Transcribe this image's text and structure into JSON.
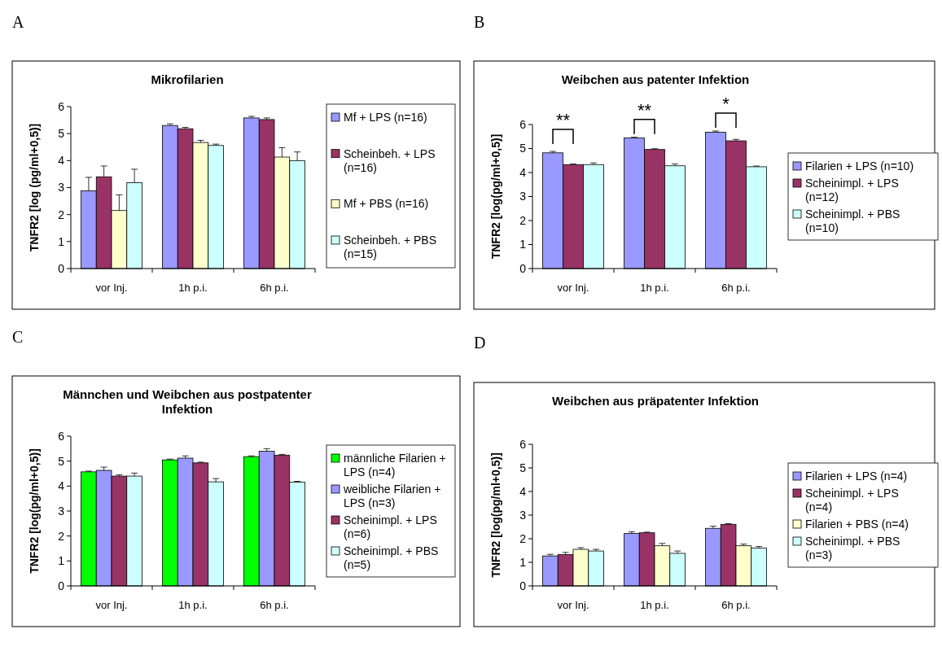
{
  "chart_data": [
    {
      "type": "bar",
      "title": "Mikrofilarien",
      "ylabel": "TNFR2 [log (pg/ml+0,5)]",
      "annotations": [
        "A"
      ],
      "categories": [
        "vor Inj.",
        "1h p.i.",
        "6h p.i."
      ],
      "ylim": [
        0,
        6
      ],
      "yticks": [
        0,
        1,
        2,
        3,
        4,
        5,
        6
      ],
      "legend": "right",
      "series": [
        {
          "name": "Mf + LPS (n=16)",
          "color": "#9999ff",
          "values": [
            2.88,
            5.3,
            5.58
          ],
          "errors": [
            [
              2.88,
              3.38
            ],
            [
              5.3,
              5.36
            ],
            [
              5.58,
              5.64
            ]
          ]
        },
        {
          "name": "Scheinbeh. + LPS (n=16)",
          "color": "#993366",
          "values": [
            3.4,
            5.18,
            5.52
          ],
          "errors": [
            [
              3.4,
              3.8
            ],
            [
              5.18,
              5.23
            ],
            [
              5.52,
              5.58
            ]
          ]
        },
        {
          "name": "Mf + PBS (n=16)",
          "color": "#ffffcc",
          "values": [
            2.15,
            4.67,
            4.13
          ],
          "errors": [
            [
              2.15,
              2.73
            ],
            [
              4.67,
              4.75
            ],
            [
              4.13,
              4.48
            ]
          ]
        },
        {
          "name": "Scheinbeh. + PBS (n=15)",
          "color": "#ccffff",
          "values": [
            3.18,
            4.56,
            4.0
          ],
          "errors": [
            [
              3.18,
              3.68
            ],
            [
              4.56,
              4.61
            ],
            [
              4.0,
              4.32
            ]
          ]
        }
      ]
    },
    {
      "type": "bar",
      "title": "Weibchen aus patenter Infektion",
      "ylabel": "TNFR2 [log(pg/ml+0,5)]",
      "annotations": [
        "B",
        {
          "text": "**",
          "x": "vor Inj."
        },
        {
          "text": "**",
          "x": "1h p.i."
        },
        {
          "text": "*",
          "x": "6h p.i."
        }
      ],
      "categories": [
        "vor Inj.",
        "1h p.i.",
        "6h p.i."
      ],
      "ylim": [
        0,
        6
      ],
      "yticks": [
        0,
        1,
        2,
        3,
        4,
        5,
        6
      ],
      "legend": "right",
      "series": [
        {
          "name": "Filarien + LPS (n=10)",
          "color": "#9999ff",
          "values": [
            4.82,
            5.44,
            5.68
          ],
          "errors": [
            [
              4.82,
              4.88
            ],
            [
              5.44,
              5.47
            ],
            [
              5.68,
              5.73
            ]
          ]
        },
        {
          "name": "Scheinimpl. + LPS (n=12)",
          "color": "#993366",
          "values": [
            4.33,
            4.96,
            5.32
          ],
          "errors": [
            [
              4.33,
              4.36
            ],
            [
              4.96,
              4.99
            ],
            [
              5.32,
              5.38
            ]
          ]
        },
        {
          "name": "Scheinimpl. + PBS (n=10)",
          "color": "#ccffff",
          "values": [
            4.33,
            4.28,
            4.24
          ],
          "errors": [
            [
              4.33,
              4.4
            ],
            [
              4.28,
              4.36
            ],
            [
              4.24,
              4.27
            ]
          ]
        }
      ]
    },
    {
      "type": "bar",
      "title": "Männchen und Weibchen aus postpatenter Infektion",
      "ylabel": "TNFR2 [log(pg/ml+0,5)]",
      "annotations": [
        "C"
      ],
      "categories": [
        "vor Inj.",
        "1h p.i.",
        "6h p.i."
      ],
      "ylim": [
        0,
        6
      ],
      "yticks": [
        0,
        1,
        2,
        3,
        4,
        5,
        6
      ],
      "legend": "right",
      "series": [
        {
          "name": "männliche Filarien + LPS (n=4)",
          "color": "#00ff00",
          "values": [
            4.57,
            5.05,
            5.18
          ],
          "errors": [
            [
              4.57,
              4.6
            ],
            [
              5.05,
              5.08
            ],
            [
              5.18,
              5.21
            ]
          ]
        },
        {
          "name": "weibliche Filarien + LPS (n=3)",
          "color": "#9999ff",
          "values": [
            4.63,
            5.12,
            5.4
          ],
          "errors": [
            [
              4.63,
              4.76
            ],
            [
              5.12,
              5.21
            ],
            [
              5.4,
              5.5
            ]
          ]
        },
        {
          "name": "Scheinimpl. + LPS (n=6)",
          "color": "#993366",
          "values": [
            4.4,
            4.93,
            5.24
          ],
          "errors": [
            [
              4.4,
              4.45
            ],
            [
              4.93,
              4.96
            ],
            [
              5.24,
              5.27
            ]
          ]
        },
        {
          "name": "Scheinimpl. + PBS (n=5)",
          "color": "#ccffff",
          "values": [
            4.4,
            4.17,
            4.16
          ],
          "errors": [
            [
              4.4,
              4.52
            ],
            [
              4.17,
              4.3
            ],
            [
              4.16,
              4.19
            ]
          ]
        }
      ]
    },
    {
      "type": "bar",
      "title": "Weibchen aus präpatenter Infektion",
      "ylabel": "TNFR2 [log(pg/ml+0,5)]",
      "annotations": [
        "D"
      ],
      "categories": [
        "vor Inj.",
        "1h p.i.",
        "6h p.i."
      ],
      "ylim": [
        0,
        6
      ],
      "yticks": [
        0,
        1,
        2,
        3,
        4,
        5,
        6
      ],
      "legend": "right",
      "series": [
        {
          "name": "Filarien + LPS (n=4)",
          "color": "#9999ff",
          "values": [
            1.27,
            2.22,
            2.44
          ],
          "errors": [
            [
              1.27,
              1.34
            ],
            [
              2.22,
              2.29
            ],
            [
              2.44,
              2.53
            ]
          ]
        },
        {
          "name": "Scheinimpl. + LPS (n=4)",
          "color": "#993366",
          "values": [
            1.33,
            2.25,
            2.61
          ],
          "errors": [
            [
              1.33,
              1.42
            ],
            [
              2.25,
              2.28
            ],
            [
              2.61,
              2.64
            ]
          ]
        },
        {
          "name": "Filarien + PBS (n=4)",
          "color": "#ffffcc",
          "values": [
            1.55,
            1.7,
            1.7
          ],
          "errors": [
            [
              1.55,
              1.62
            ],
            [
              1.7,
              1.8
            ],
            [
              1.7,
              1.77
            ]
          ]
        },
        {
          "name": "Scheinimpl. + PBS (n=3)",
          "color": "#ccffff",
          "values": [
            1.48,
            1.38,
            1.6
          ],
          "errors": [
            [
              1.48,
              1.55
            ],
            [
              1.38,
              1.48
            ],
            [
              1.6,
              1.67
            ]
          ]
        }
      ]
    }
  ]
}
